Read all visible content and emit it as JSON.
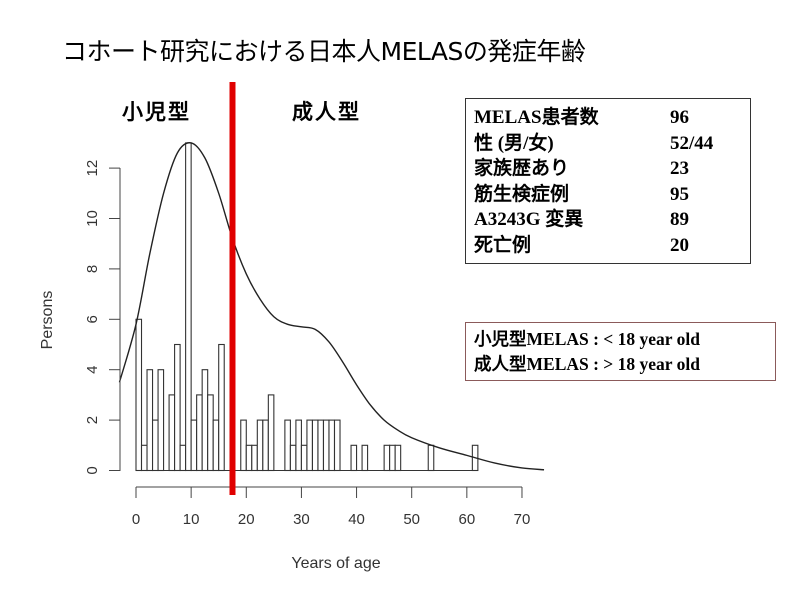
{
  "title": "コホート研究における日本人MELASの発症年齢",
  "group_labels": {
    "pediatric": "小児型",
    "adult": "成人型"
  },
  "divider_color": "#e00000",
  "stats_table": [
    {
      "label": "MELAS患者数",
      "value": "96"
    },
    {
      "label": "性 (男/女)",
      "value": "52/44"
    },
    {
      "label": "家族歴あり",
      "value": "23"
    },
    {
      "label": "筋生検症例",
      "value": "95"
    },
    {
      "label": "A3243G 変異",
      "value": "89"
    },
    {
      "label": "死亡例",
      "value": "20"
    }
  ],
  "definitions": [
    "小児型MELAS : < 18 year old",
    "成人型MELAS : > 18 year old"
  ],
  "chart_data": {
    "type": "bar",
    "subtype": "histogram with density curve",
    "xlabel": "Years of age",
    "ylabel": "Persons",
    "xlim": [
      0,
      70
    ],
    "ylim": [
      0,
      12
    ],
    "xticks": [
      "0",
      "10",
      "20",
      "30",
      "40",
      "50",
      "60",
      "70"
    ],
    "yticks": [
      "0",
      "2",
      "4",
      "6",
      "8",
      "10",
      "12"
    ],
    "bin_width": 1,
    "bins": [
      {
        "age": 0,
        "count": 6
      },
      {
        "age": 1,
        "count": 1
      },
      {
        "age": 2,
        "count": 4
      },
      {
        "age": 3,
        "count": 2
      },
      {
        "age": 4,
        "count": 4
      },
      {
        "age": 6,
        "count": 3
      },
      {
        "age": 7,
        "count": 5
      },
      {
        "age": 8,
        "count": 1
      },
      {
        "age": 9,
        "count": 13
      },
      {
        "age": 10,
        "count": 2
      },
      {
        "age": 11,
        "count": 3
      },
      {
        "age": 12,
        "count": 4
      },
      {
        "age": 13,
        "count": 3
      },
      {
        "age": 14,
        "count": 2
      },
      {
        "age": 15,
        "count": 5
      },
      {
        "age": 19,
        "count": 2
      },
      {
        "age": 20,
        "count": 1
      },
      {
        "age": 21,
        "count": 1
      },
      {
        "age": 22,
        "count": 2
      },
      {
        "age": 23,
        "count": 2
      },
      {
        "age": 24,
        "count": 3
      },
      {
        "age": 27,
        "count": 2
      },
      {
        "age": 28,
        "count": 1
      },
      {
        "age": 29,
        "count": 2
      },
      {
        "age": 30,
        "count": 1
      },
      {
        "age": 31,
        "count": 2
      },
      {
        "age": 32,
        "count": 2
      },
      {
        "age": 33,
        "count": 2
      },
      {
        "age": 34,
        "count": 2
      },
      {
        "age": 35,
        "count": 2
      },
      {
        "age": 36,
        "count": 2
      },
      {
        "age": 39,
        "count": 1
      },
      {
        "age": 41,
        "count": 1
      },
      {
        "age": 45,
        "count": 1
      },
      {
        "age": 46,
        "count": 1
      },
      {
        "age": 47,
        "count": 1
      },
      {
        "age": 53,
        "count": 1
      },
      {
        "age": 61,
        "count": 1
      }
    ],
    "density_curve": [
      [
        -3,
        3.5
      ],
      [
        0,
        5.8
      ],
      [
        2.5,
        8.6
      ],
      [
        5,
        11
      ],
      [
        7.5,
        12.6
      ],
      [
        10,
        13
      ],
      [
        12.5,
        12.4
      ],
      [
        15,
        11
      ],
      [
        17.5,
        9.2
      ],
      [
        20,
        7.8
      ],
      [
        22.5,
        6.8
      ],
      [
        25,
        6.1
      ],
      [
        27.5,
        5.8
      ],
      [
        30,
        5.7
      ],
      [
        32.5,
        5.6
      ],
      [
        35,
        5.1
      ],
      [
        37.5,
        4.3
      ],
      [
        40,
        3.4
      ],
      [
        42.5,
        2.6
      ],
      [
        45,
        2.0
      ],
      [
        47.5,
        1.6
      ],
      [
        50,
        1.3
      ],
      [
        55,
        0.9
      ],
      [
        60,
        0.6
      ],
      [
        65,
        0.3
      ],
      [
        70,
        0.1
      ],
      [
        74,
        0.03
      ]
    ],
    "divider_age": 17.5
  }
}
